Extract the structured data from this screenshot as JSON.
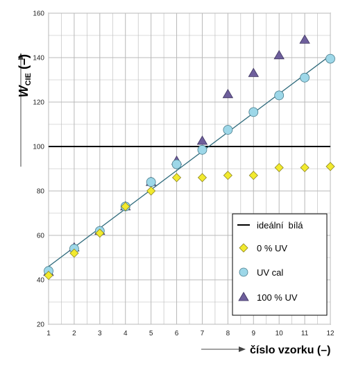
{
  "chart_data": {
    "type": "scatter",
    "x_ticks": [
      "1",
      "2",
      "3",
      "4",
      "5",
      "6",
      "7",
      "8",
      "9",
      "10",
      "11",
      "12"
    ],
    "y_ticks": [
      "20",
      "40",
      "60",
      "80",
      "100",
      "120",
      "140",
      "160"
    ],
    "xlim": [
      1,
      12
    ],
    "ylim": [
      20,
      160
    ],
    "grid": true,
    "xlabel": "číslo vzorku (–)",
    "ylabel": {
      "main": "W",
      "sub": "CIE",
      "tail": " (–)"
    },
    "legend_position": "bottom-right",
    "colors": {
      "ideal": "#000000",
      "uv0": "#f2ea2e",
      "uvcal": "#9dd7e8",
      "uv100": "#6e5f9c",
      "fit_line": "#2f6b7c",
      "grid": "#b8b8b8"
    },
    "series": [
      {
        "name": "ideální  bílá",
        "kind": "hline",
        "y": 100
      },
      {
        "name": "0 % UV",
        "marker": "diamond",
        "x": [
          1,
          2,
          3,
          4,
          5,
          6,
          7,
          8,
          9,
          10,
          11,
          12
        ],
        "y": [
          42,
          52,
          61,
          73,
          80,
          86,
          86,
          87,
          87,
          90.5,
          90.5,
          91
        ]
      },
      {
        "name": "UV cal",
        "marker": "circle",
        "x": [
          1,
          2,
          3,
          4,
          5,
          6,
          7,
          8,
          9,
          10,
          11,
          12
        ],
        "y": [
          44,
          54,
          62,
          73,
          84,
          92,
          98.5,
          107.5,
          115.5,
          123,
          131,
          139.5
        ]
      },
      {
        "name": "100 % UV",
        "marker": "triangle",
        "x": [
          1,
          2,
          3,
          4,
          5,
          6,
          7,
          8,
          9,
          10,
          11,
          12
        ],
        "y": [
          43.5,
          54.5,
          62,
          73,
          84,
          93.5,
          102.5,
          123.5,
          133,
          141,
          148,
          null
        ]
      }
    ],
    "trend_line": {
      "x": [
        1,
        12
      ],
      "y": [
        46,
        141
      ]
    }
  }
}
